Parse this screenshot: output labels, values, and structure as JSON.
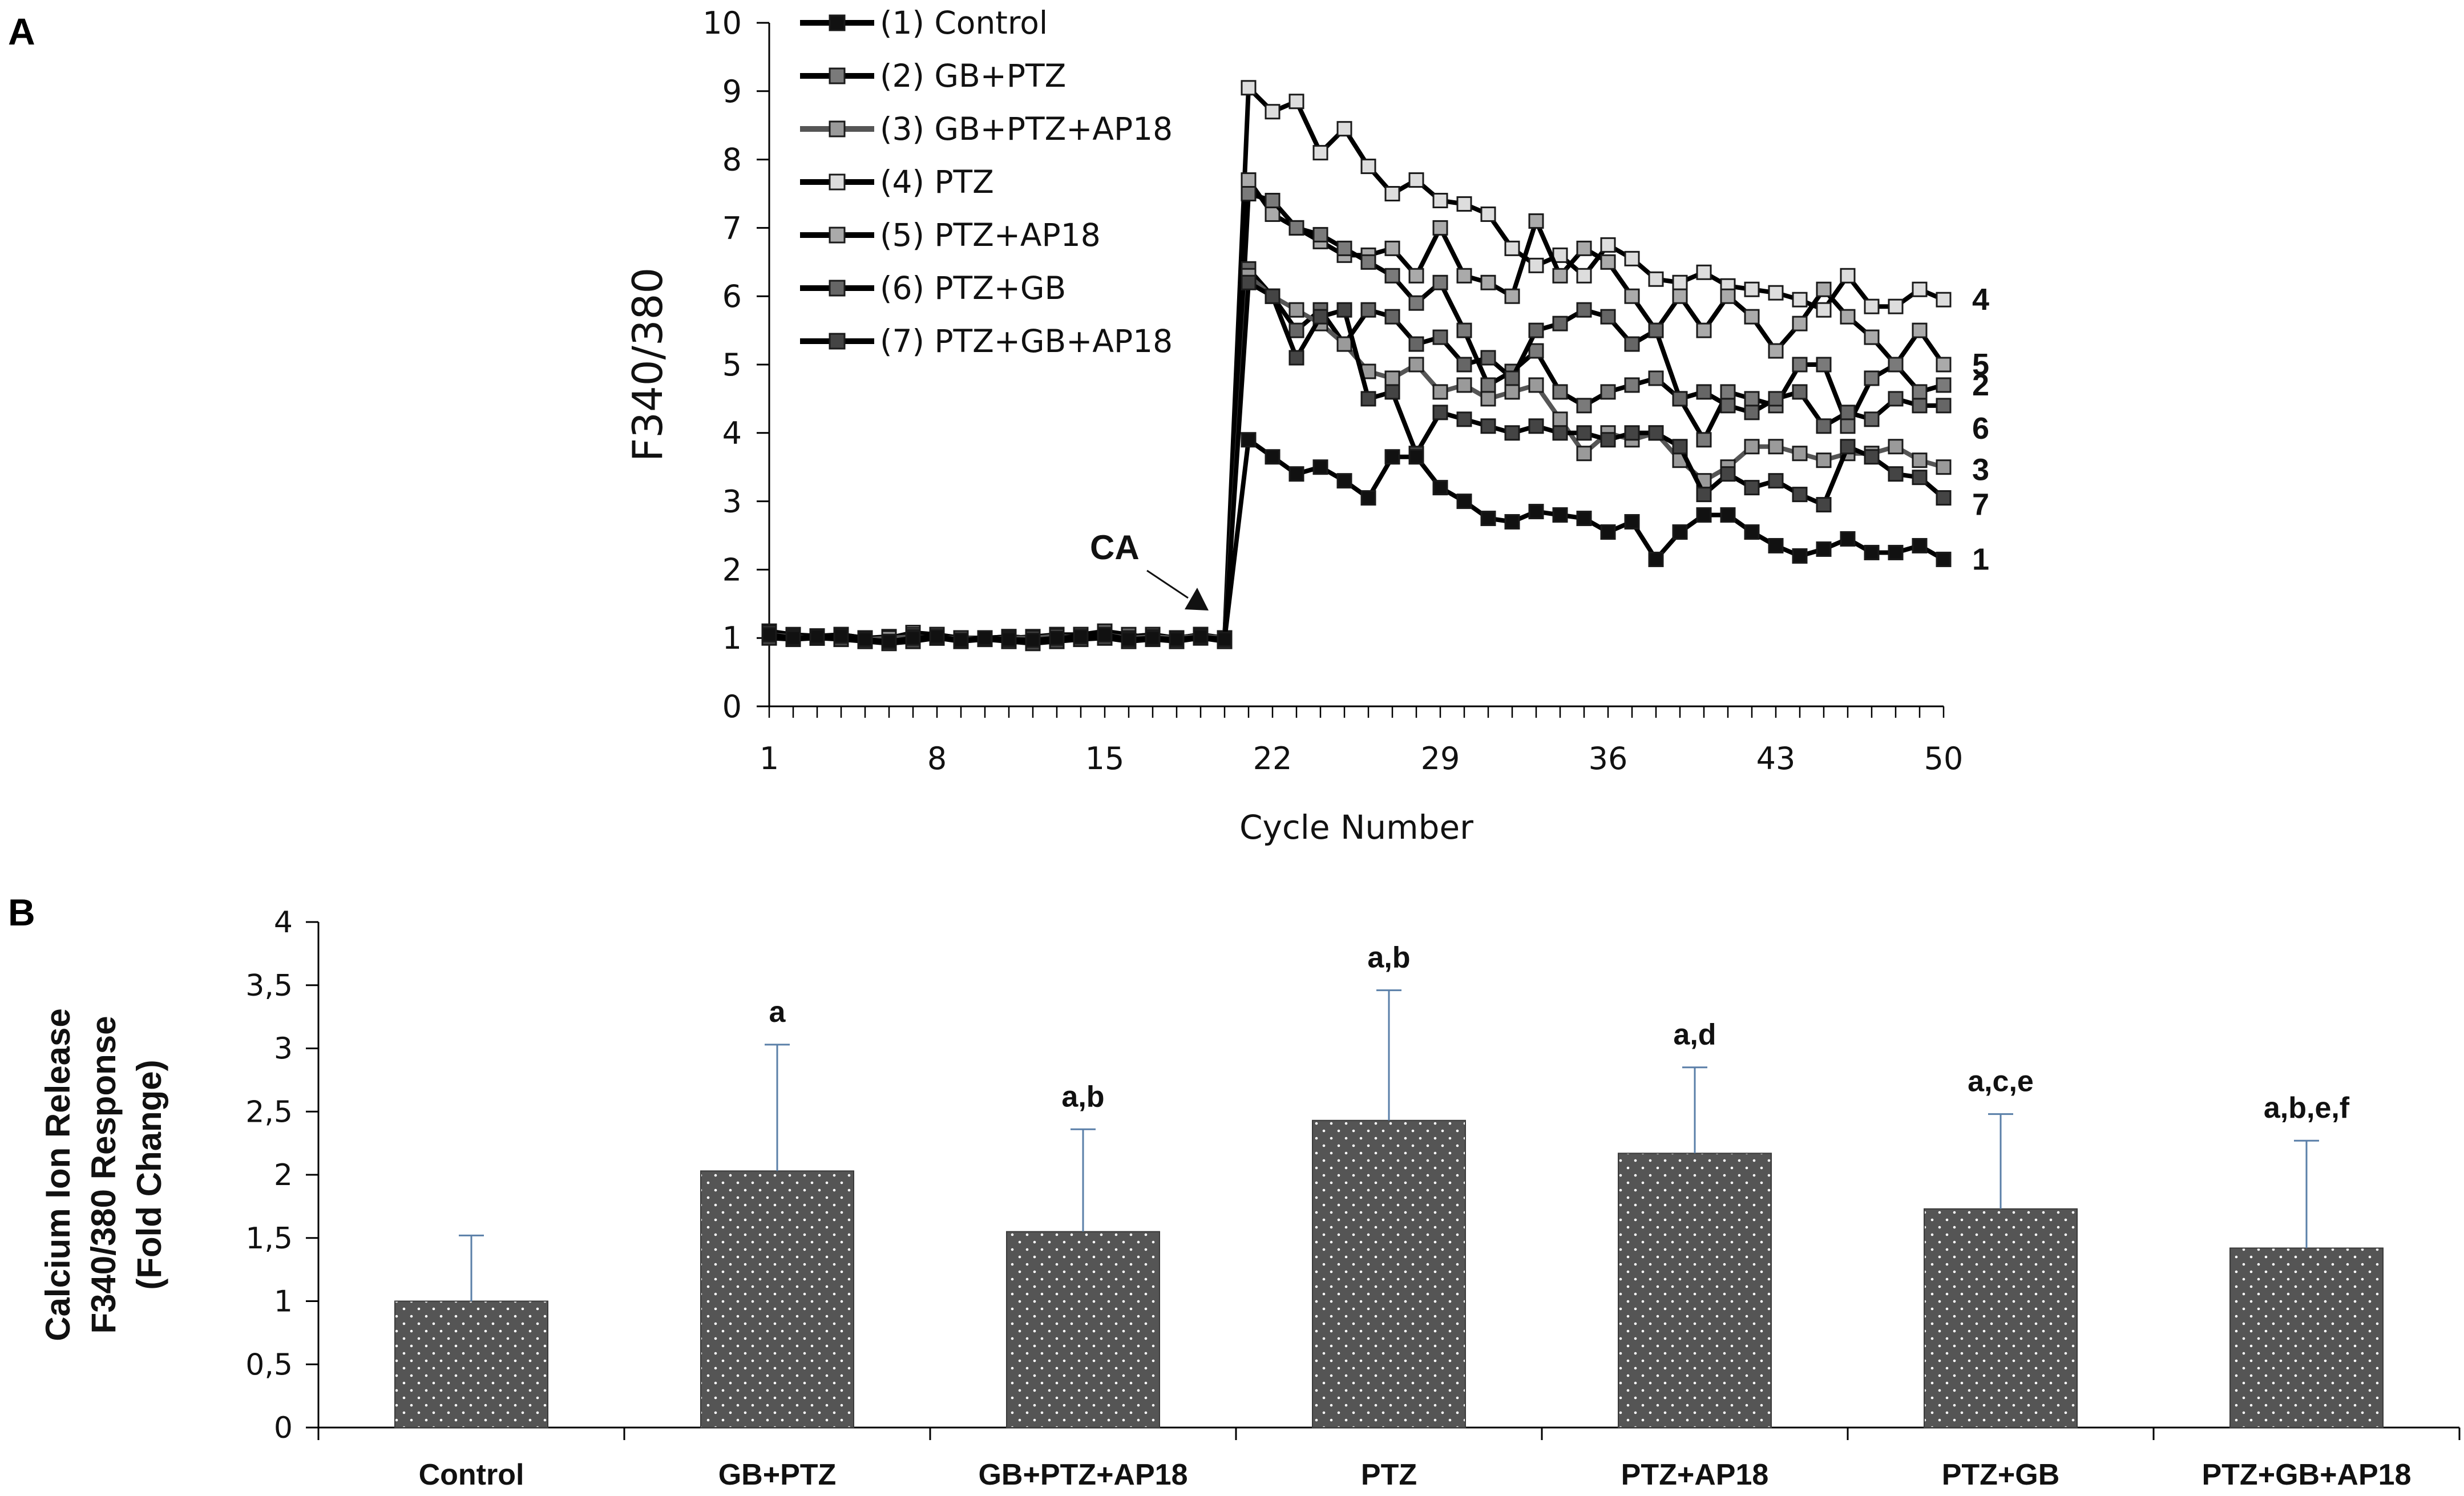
{
  "panels": {
    "a": "A",
    "b": "B"
  },
  "chart_data": [
    {
      "type": "line",
      "panel": "A",
      "ylabel": "F340/380",
      "xlabel": "Cycle Number",
      "xlim": [
        1,
        50
      ],
      "ylim": [
        0,
        10
      ],
      "xticks": [
        1,
        8,
        15,
        22,
        29,
        36,
        43,
        50
      ],
      "yticks": [
        0,
        1,
        2,
        3,
        4,
        5,
        6,
        7,
        8,
        9,
        10
      ],
      "annotation": {
        "text": "CA",
        "x": 19.5
      },
      "series": [
        {
          "name": "(1) Control",
          "label": "1",
          "line_color": "#000000",
          "marker_fill": "#111111",
          "values": [
            1.05,
            1.0,
            1.02,
            1.03,
            0.98,
            0.95,
            1.0,
            1.02,
            0.97,
            1.0,
            0.98,
            0.97,
            1.0,
            1.02,
            1.05,
            0.98,
            1.0,
            0.98,
            1.02,
            0.98,
            3.9,
            3.65,
            3.4,
            3.5,
            3.3,
            3.05,
            3.65,
            3.65,
            3.2,
            3.0,
            2.75,
            2.7,
            2.85,
            2.8,
            2.75,
            2.55,
            2.7,
            2.15,
            2.55,
            2.8,
            2.8,
            2.55,
            2.35,
            2.2,
            2.3,
            2.45,
            2.25,
            2.25,
            2.35,
            2.15
          ]
        },
        {
          "name": "(2) GB+PTZ",
          "label": "2",
          "line_color": "#000000",
          "marker_fill": "#7a7a7a",
          "values": [
            1.08,
            1.03,
            1.0,
            1.05,
            1.0,
            1.0,
            1.05,
            1.0,
            1.0,
            1.0,
            1.02,
            1.0,
            1.05,
            1.0,
            1.08,
            1.02,
            1.05,
            1.0,
            1.05,
            1.0,
            7.5,
            7.4,
            7.0,
            6.9,
            6.7,
            6.5,
            6.3,
            5.9,
            6.2,
            5.5,
            4.7,
            4.9,
            5.2,
            4.6,
            4.4,
            4.6,
            4.7,
            4.8,
            4.5,
            3.9,
            4.6,
            4.5,
            4.4,
            5.0,
            5.0,
            4.1,
            4.8,
            5.0,
            4.6,
            4.7
          ]
        },
        {
          "name": "(3) GB+PTZ+AP18",
          "label": "3",
          "line_color": "#555555",
          "marker_fill": "#9a9a9a",
          "values": [
            1.05,
            1.02,
            1.0,
            1.03,
            0.98,
            1.0,
            1.02,
            1.0,
            1.0,
            0.98,
            1.0,
            1.0,
            1.03,
            1.0,
            1.05,
            1.0,
            1.02,
            1.0,
            1.03,
            1.0,
            6.3,
            6.0,
            5.8,
            5.6,
            5.3,
            4.9,
            4.8,
            5.0,
            4.6,
            4.7,
            4.5,
            4.6,
            4.7,
            4.2,
            3.7,
            4.0,
            3.9,
            4.0,
            3.6,
            3.3,
            3.5,
            3.8,
            3.8,
            3.7,
            3.6,
            3.7,
            3.7,
            3.8,
            3.6,
            3.5
          ]
        },
        {
          "name": "(4) PTZ",
          "label": "4",
          "line_color": "#000000",
          "marker_fill": "#dddddd",
          "values": [
            1.1,
            1.05,
            1.03,
            1.05,
            1.0,
            1.0,
            1.08,
            1.05,
            1.0,
            1.0,
            1.0,
            1.02,
            1.05,
            1.05,
            1.0,
            1.02,
            1.05,
            1.0,
            1.05,
            1.0,
            9.05,
            8.7,
            8.85,
            8.1,
            8.45,
            7.9,
            7.5,
            7.7,
            7.4,
            7.35,
            7.2,
            6.7,
            6.45,
            6.6,
            6.3,
            6.75,
            6.55,
            6.25,
            6.2,
            6.35,
            6.15,
            6.1,
            6.05,
            5.95,
            5.8,
            6.3,
            5.85,
            5.85,
            6.1,
            5.95
          ]
        },
        {
          "name": "(5) PTZ+AP18",
          "label": "5",
          "line_color": "#000000",
          "marker_fill": "#aaaaaa",
          "values": [
            1.02,
            1.0,
            1.0,
            1.02,
            0.98,
            1.0,
            1.0,
            1.02,
            1.0,
            1.0,
            1.0,
            1.0,
            1.02,
            1.0,
            1.05,
            1.0,
            1.03,
            1.0,
            1.02,
            1.0,
            7.7,
            7.2,
            7.0,
            6.8,
            6.6,
            6.6,
            6.7,
            6.3,
            7.0,
            6.3,
            6.2,
            6.0,
            7.1,
            6.3,
            6.7,
            6.5,
            6.0,
            5.5,
            6.0,
            5.5,
            6.0,
            5.7,
            5.2,
            5.6,
            6.1,
            5.7,
            5.4,
            5.0,
            5.5,
            5.0
          ]
        },
        {
          "name": "(6) PTZ+GB",
          "label": "6",
          "line_color": "#000000",
          "marker_fill": "#666666",
          "values": [
            1.05,
            1.0,
            1.02,
            1.0,
            1.0,
            1.02,
            1.0,
            1.05,
            1.0,
            1.0,
            1.02,
            1.0,
            1.0,
            1.05,
            1.1,
            1.05,
            1.0,
            1.0,
            1.05,
            1.0,
            6.4,
            6.0,
            5.5,
            5.8,
            5.3,
            5.8,
            5.7,
            5.3,
            5.4,
            5.0,
            5.1,
            4.8,
            5.5,
            5.6,
            5.8,
            5.7,
            5.3,
            5.5,
            4.5,
            4.6,
            4.4,
            4.3,
            4.5,
            4.6,
            4.1,
            4.3,
            4.2,
            4.5,
            4.4,
            4.4
          ]
        },
        {
          "name": "(7) PTZ+GB+AP18",
          "label": "7",
          "line_color": "#000000",
          "marker_fill": "#444444",
          "values": [
            1.0,
            0.98,
            1.0,
            0.98,
            0.95,
            0.92,
            0.95,
            1.0,
            0.95,
            0.98,
            0.95,
            0.92,
            0.95,
            0.98,
            1.0,
            0.95,
            0.98,
            0.95,
            1.0,
            0.95,
            6.2,
            6.0,
            5.1,
            5.7,
            5.8,
            4.5,
            4.6,
            3.7,
            4.3,
            4.2,
            4.1,
            4.0,
            4.1,
            4.0,
            4.0,
            3.9,
            4.0,
            4.0,
            3.8,
            3.1,
            3.4,
            3.2,
            3.3,
            3.1,
            2.95,
            3.8,
            3.65,
            3.4,
            3.35,
            3.05
          ]
        }
      ]
    },
    {
      "type": "bar",
      "panel": "B",
      "ylabel_lines": [
        "Calcium Ion Release",
        "F340/380 Response",
        "(Fold Change)"
      ],
      "ylim": [
        0,
        4
      ],
      "yticks": [
        "0",
        "0,5",
        "1",
        "1,5",
        "2",
        "2,5",
        "3",
        "3,5",
        "4"
      ],
      "categories": [
        "Control",
        "GB+PTZ",
        "GB+PTZ+AP18",
        "PTZ",
        "PTZ+AP18",
        "PTZ+GB",
        "PTZ+GB+AP18"
      ],
      "values": [
        1.0,
        2.03,
        1.55,
        2.43,
        2.17,
        1.73,
        1.42
      ],
      "errors": [
        0.52,
        1.0,
        0.81,
        1.03,
        0.68,
        0.75,
        0.85
      ],
      "significance": [
        "",
        "a",
        "a,b",
        "a,b",
        "a,d",
        "a,c,e",
        "a,b,e,f"
      ],
      "bar_color": "#555555"
    }
  ]
}
